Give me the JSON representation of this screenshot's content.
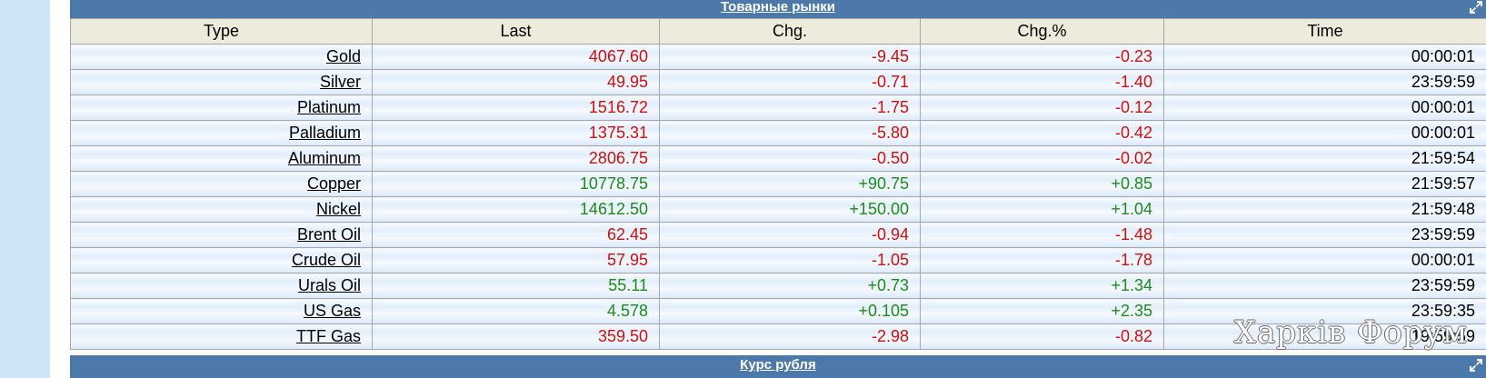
{
  "header": {
    "title": "Товарные рынки",
    "expand_icon": "expand-icon"
  },
  "columns": {
    "type": "Type",
    "last": "Last",
    "chg": "Chg.",
    "chgpct": "Chg.%",
    "time": "Time"
  },
  "rows": [
    {
      "type": "Gold",
      "last": "4067.60",
      "chg": "-9.45",
      "chgpct": "-0.23",
      "time": "00:00:01",
      "dir": "neg"
    },
    {
      "type": "Silver",
      "last": "49.95",
      "chg": "-0.71",
      "chgpct": "-1.40",
      "time": "23:59:59",
      "dir": "neg"
    },
    {
      "type": "Platinum",
      "last": "1516.72",
      "chg": "-1.75",
      "chgpct": "-0.12",
      "time": "00:00:01",
      "dir": "neg"
    },
    {
      "type": "Palladium",
      "last": "1375.31",
      "chg": "-5.80",
      "chgpct": "-0.42",
      "time": "00:00:01",
      "dir": "neg"
    },
    {
      "type": "Aluminum",
      "last": "2806.75",
      "chg": "-0.50",
      "chgpct": "-0.02",
      "time": "21:59:54",
      "dir": "neg"
    },
    {
      "type": "Copper",
      "last": "10778.75",
      "chg": "+90.75",
      "chgpct": "+0.85",
      "time": "21:59:57",
      "dir": "pos"
    },
    {
      "type": "Nickel",
      "last": "14612.50",
      "chg": "+150.00",
      "chgpct": "+1.04",
      "time": "21:59:48",
      "dir": "pos"
    },
    {
      "type": "Brent Oil",
      "last": "62.45",
      "chg": "-0.94",
      "chgpct": "-1.48",
      "time": "23:59:59",
      "dir": "neg"
    },
    {
      "type": "Crude Oil",
      "last": "57.95",
      "chg": "-1.05",
      "chgpct": "-1.78",
      "time": "00:00:01",
      "dir": "neg"
    },
    {
      "type": "Urals Oil",
      "last": "55.11",
      "chg": "+0.73",
      "chgpct": "+1.34",
      "time": "23:59:59",
      "dir": "pos"
    },
    {
      "type": "US Gas",
      "last": "4.578",
      "chg": "+0.105",
      "chgpct": "+2.35",
      "time": "23:59:35",
      "dir": "pos"
    },
    {
      "type": "TTF Gas",
      "last": "359.50",
      "chg": "-2.98",
      "chgpct": "-0.82",
      "time": "19:59:59",
      "dir": "neg"
    }
  ],
  "footer_header": {
    "title": "Курс рубля",
    "expand_icon": "expand-icon"
  },
  "watermark": {
    "text": "Харків Форум"
  },
  "colors": {
    "header_bg": "#4d79aa",
    "column_header_bg": "#ecebdc",
    "negative": "#cc1111",
    "positive": "#1f8a1f",
    "side_strip": "#d0e4f7"
  }
}
